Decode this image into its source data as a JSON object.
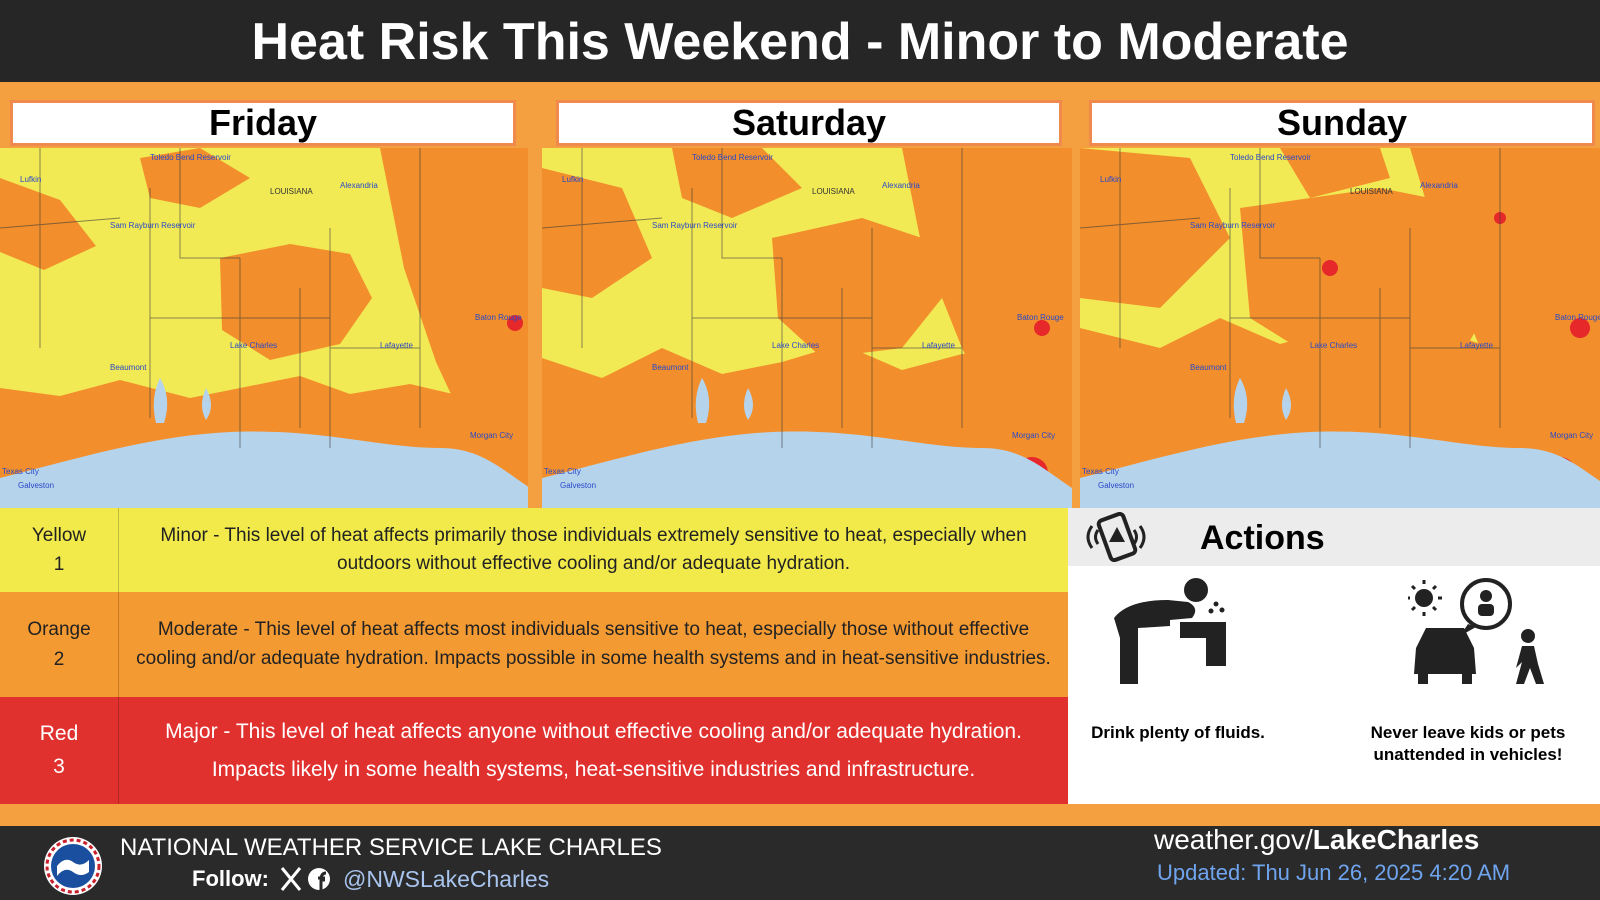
{
  "header": {
    "title": "Heat Risk This Weekend - Minor to Moderate"
  },
  "days": [
    "Friday",
    "Saturday",
    "Sunday"
  ],
  "map_labels": [
    "Lufkin",
    "Toledo Bend Reservoir",
    "Sam Rayburn Reservoir",
    "LOUISIANA",
    "Alexandria",
    "Lake Charles",
    "Lafayette",
    "Beaumont",
    "Baton Rouge",
    "Morgan City",
    "Texas City",
    "Galveston"
  ],
  "legend": [
    {
      "color_name": "Yellow",
      "level": 1,
      "description": "Minor - This level of heat affects primarily those individuals extremely sensitive to heat, especially when outdoors without effective cooling and/or adequate hydration."
    },
    {
      "color_name": "Orange",
      "level": 2,
      "description": "Moderate - This level of heat affects most individuals sensitive to heat, especially those without effective cooling and/or adequate hydration. Impacts possible in some health systems and in heat-sensitive industries."
    },
    {
      "color_name": "Red",
      "level": 3,
      "description": "Major - This level of heat affects anyone without effective cooling and/or adequate hydration. Impacts likely in some health systems, heat-sensitive industries and infrastructure."
    }
  ],
  "actions": {
    "title": "Actions",
    "items": [
      "Drink plenty of fluids.",
      "Never leave kids or pets unattended in vehicles!"
    ]
  },
  "footer": {
    "office": "NATIONAL WEATHER SERVICE LAKE CHARLES",
    "follow": "Follow:",
    "handle": "@NWSLakeCharles",
    "site_prefix": "weather.gov/",
    "site_name": "LakeCharles",
    "updated": "Updated: Thu Jun 26, 2025 4:20 AM"
  }
}
